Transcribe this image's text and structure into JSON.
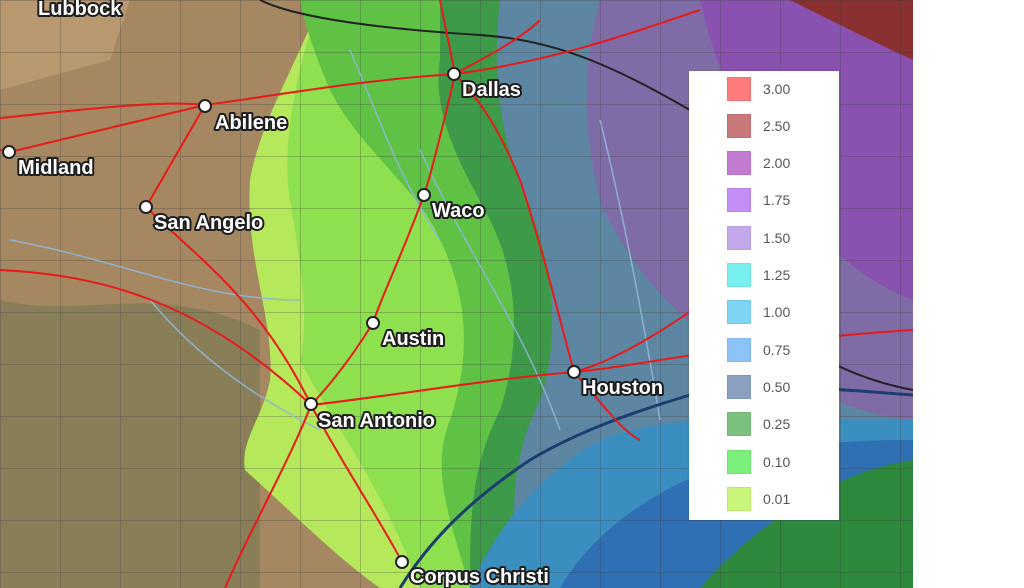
{
  "cities": [
    {
      "name": "Lubbock"
    },
    {
      "name": "Dallas"
    },
    {
      "name": "Abilene"
    },
    {
      "name": "Midland"
    },
    {
      "name": "Waco"
    },
    {
      "name": "San Angelo"
    },
    {
      "name": "Austin"
    },
    {
      "name": "Houston"
    },
    {
      "name": "San Antonio"
    },
    {
      "name": "Corpus Christi"
    }
  ],
  "legend": {
    "items": [
      {
        "label": "3.00",
        "color": "#ff7b7b"
      },
      {
        "label": "2.50",
        "color": "#c87878"
      },
      {
        "label": "2.00",
        "color": "#c47ad0"
      },
      {
        "label": "1.75",
        "color": "#c48cf5"
      },
      {
        "label": "1.50",
        "color": "#c4a8ec"
      },
      {
        "label": "1.25",
        "color": "#79f0f0"
      },
      {
        "label": "1.00",
        "color": "#7fd4f5"
      },
      {
        "label": "0.75",
        "color": "#8cc4fa"
      },
      {
        "label": "0.50",
        "color": "#89a0c1"
      },
      {
        "label": "0.25",
        "color": "#7cc07e"
      },
      {
        "label": "0.10",
        "color": "#7af07a"
      },
      {
        "label": "0.01",
        "color": "#c8f57a"
      }
    ]
  }
}
